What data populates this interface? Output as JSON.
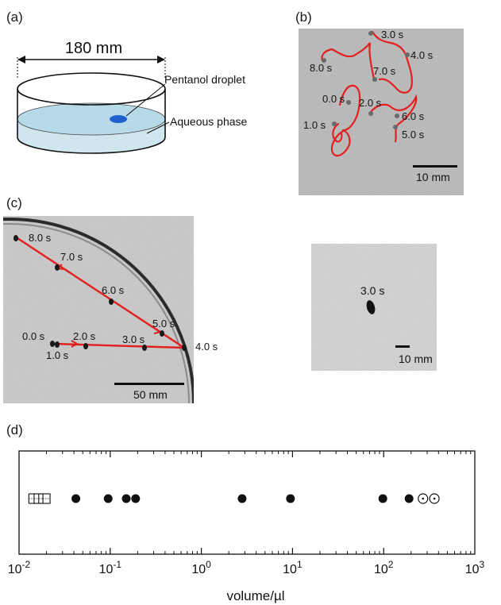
{
  "panel_a": {
    "label": "(a)",
    "dimension": "180 mm",
    "droplet_label": "Pentanol droplet",
    "phase_label": "Aqueous phase"
  },
  "panel_b": {
    "label": "(b)",
    "times": [
      "0.0 s",
      "1.0 s",
      "2.0 s",
      "3.0 s",
      "4.0 s",
      "5.0 s",
      "6.0 s",
      "7.0 s",
      "8.0 s"
    ],
    "scale_bar": "10 mm"
  },
  "panel_c": {
    "label": "(c)",
    "times": [
      "0.0 s",
      "1.0 s",
      "2.0 s",
      "3.0 s",
      "4.0 s",
      "5.0 s",
      "6.0 s",
      "7.0 s",
      "8.0 s"
    ],
    "scale_bar": "50 mm"
  },
  "panel_inset": {
    "time": "3.0 s",
    "scale_bar": "10 mm"
  },
  "panel_d": {
    "label": "(d)",
    "chart_data": {
      "type": "scatter",
      "xlabel": "volume/µl",
      "xscale": "log",
      "xlim": [
        0.01,
        1000
      ],
      "x_tick_labels": [
        "10-2",
        "10-1",
        "100",
        "101",
        "102",
        "103"
      ],
      "series": [
        {
          "marker": "open-square-striped",
          "x": [
            0.014,
            0.016,
            0.018,
            0.02
          ]
        },
        {
          "marker": "filled-circle",
          "x": [
            0.042,
            0.095,
            0.15,
            0.19,
            2.8,
            9.5,
            98,
            190
          ]
        },
        {
          "marker": "open-circle-dot",
          "x": [
            270,
            360
          ]
        }
      ]
    }
  }
}
